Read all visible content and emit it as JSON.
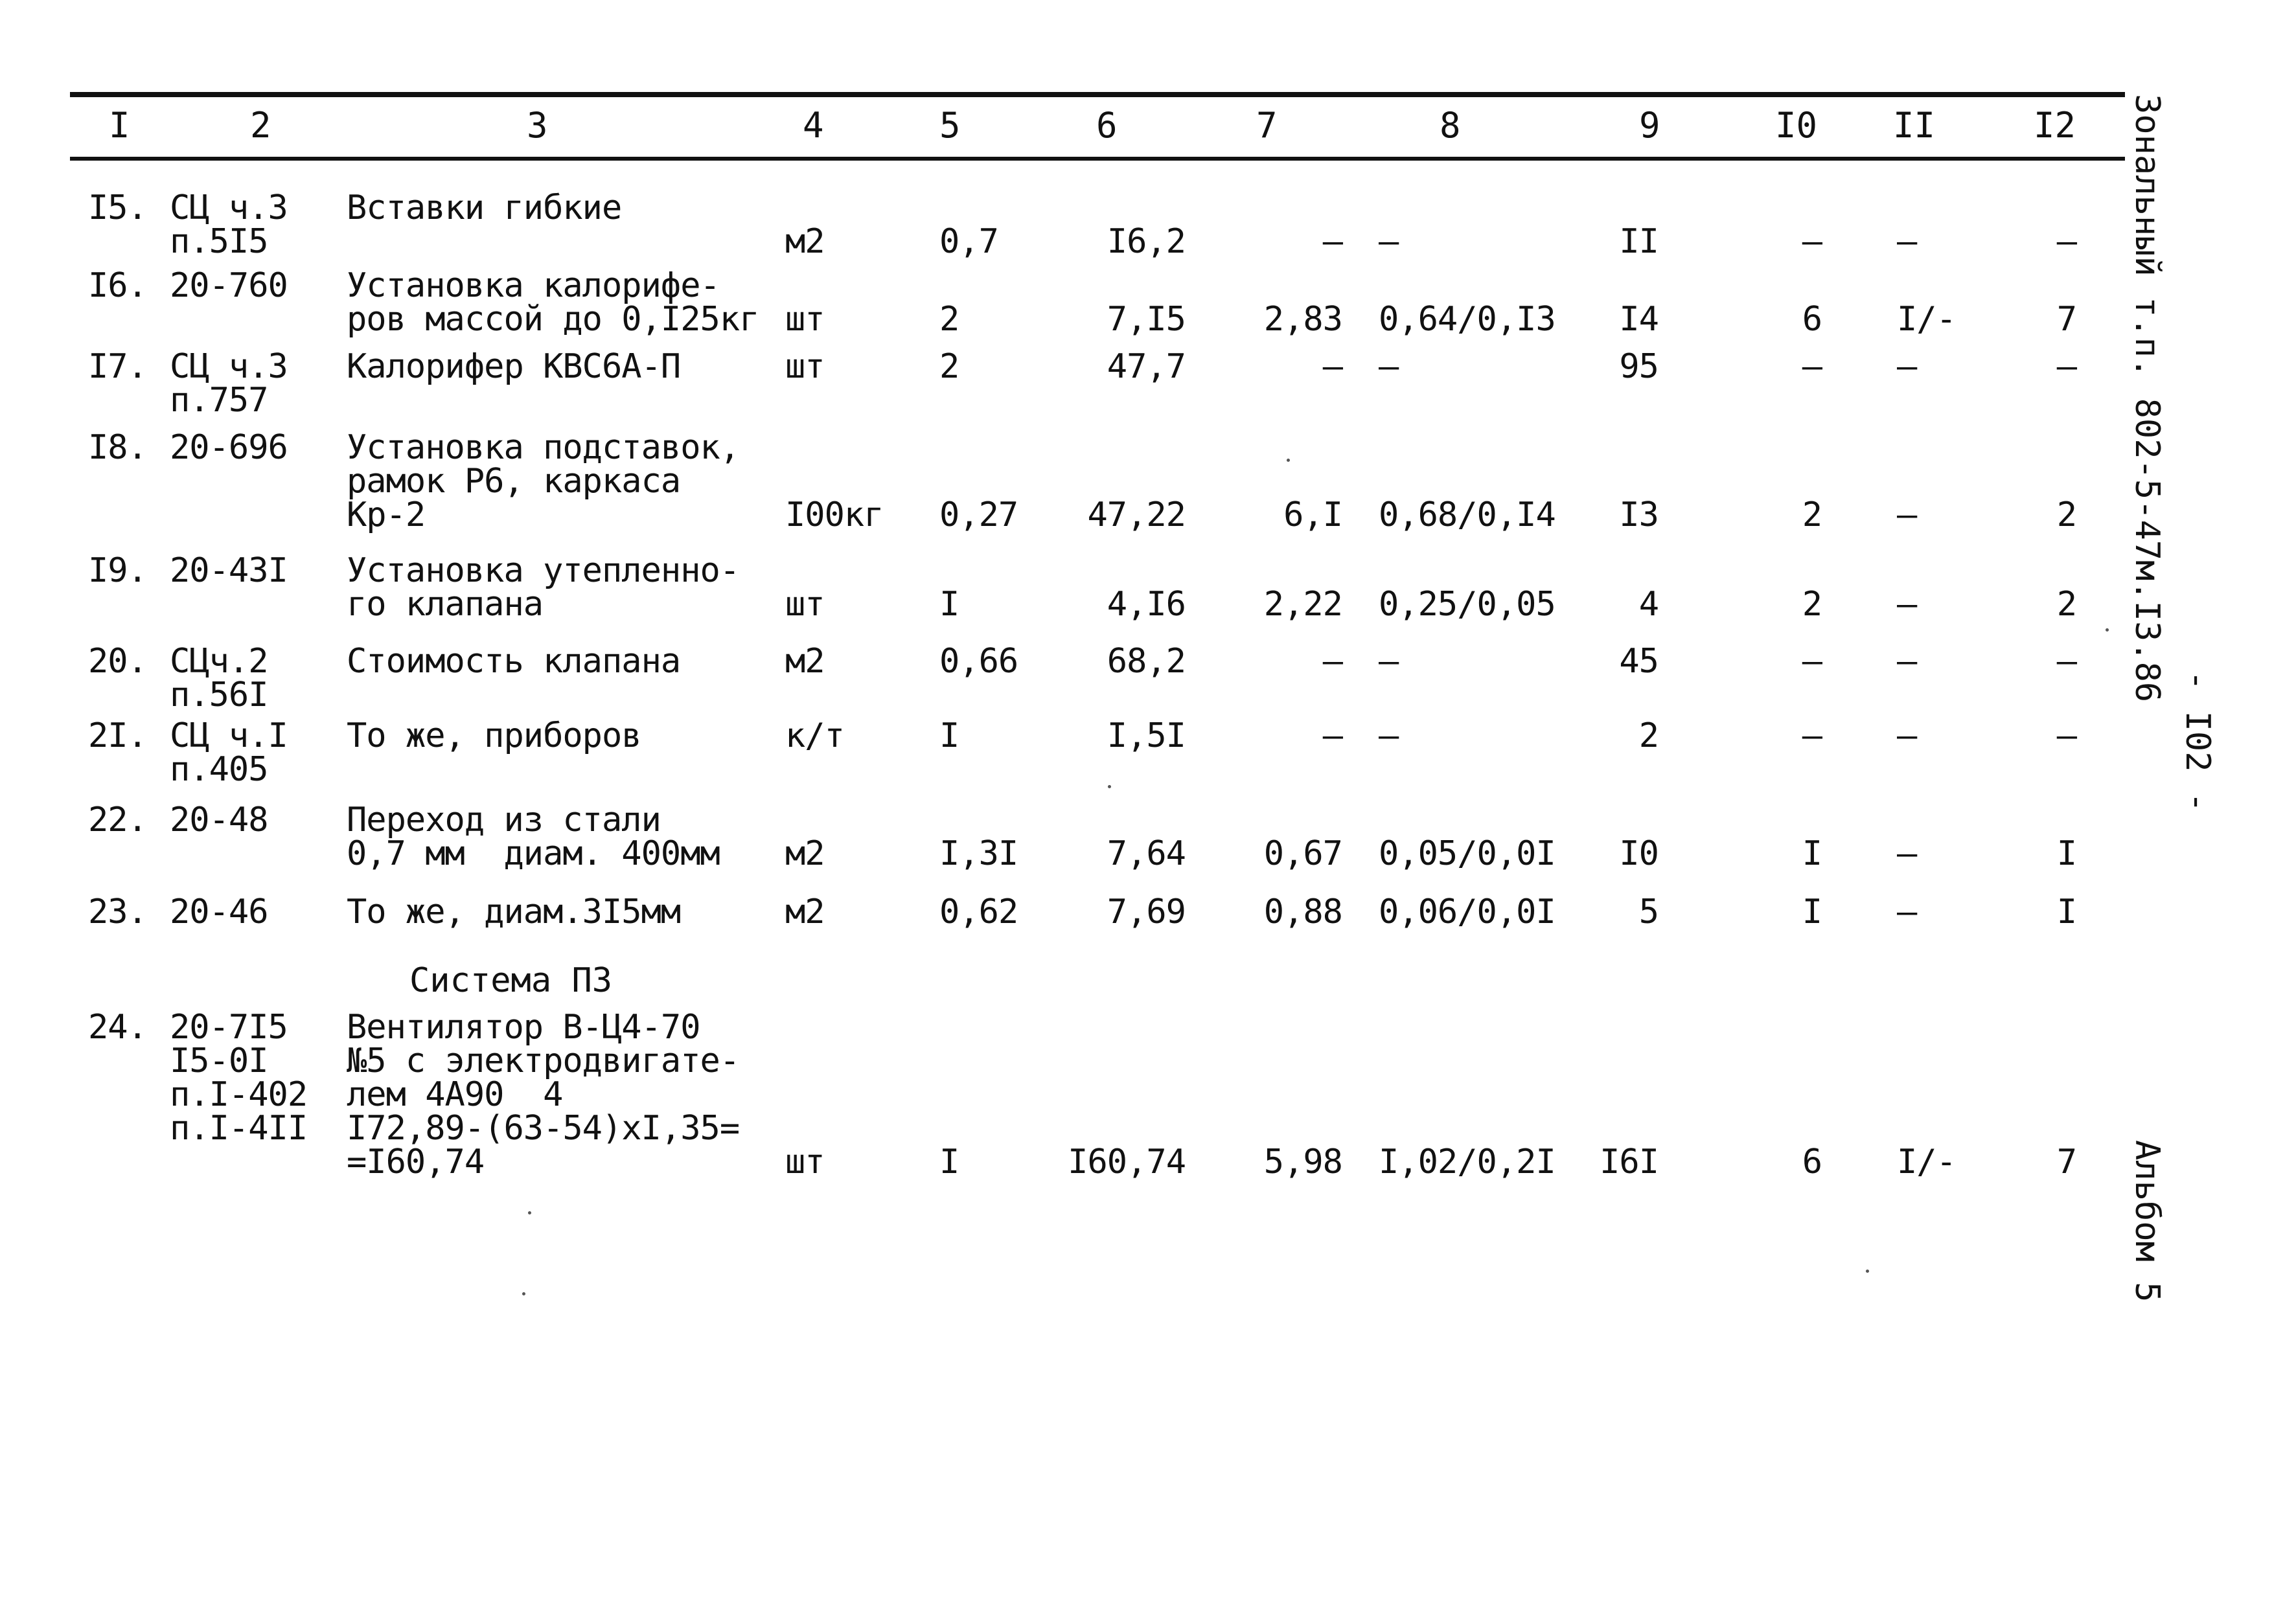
{
  "header": [
    "I",
    "2",
    "3",
    "4",
    "5",
    "6",
    "7",
    "8",
    "9",
    "I0",
    "II",
    "I2"
  ],
  "rows": [
    {
      "num": "I5.",
      "code": "СЦ ч.3\nп.5I5",
      "name": "Вставки гибкие",
      "unit": "м2",
      "c5": "0,7",
      "c6": "I6,2",
      "c7": "–",
      "c8": "–",
      "c9": "II",
      "c10": "–",
      "c11": "–",
      "c12": "–"
    },
    {
      "num": "I6.",
      "code": "20-760",
      "name": "Установка калорифе-\nров массой до 0,I25кг",
      "unit": "шт",
      "c5": "2",
      "c6": "7,I5",
      "c7": "2,83",
      "c8": "0,64/0,I3",
      "c9": "I4",
      "c10": "6",
      "c11": "I/-",
      "c12": "7"
    },
    {
      "num": "I7.",
      "code": "СЦ ч.3\nп.757",
      "name": "Калорифер КВС6А-П",
      "unit": "шт",
      "c5": "2",
      "c6": "47,7",
      "c7": "–",
      "c8": "–",
      "c9": "95",
      "c10": "–",
      "c11": "–",
      "c12": "–"
    },
    {
      "num": "I8.",
      "code": "20-696",
      "name": "Установка подставок,\nрамок Р6, каркаса\nКр-2",
      "unit": "I00кг",
      "c5": "0,27",
      "c6": "47,22",
      "c7": "6,I",
      "c8": "0,68/0,I4",
      "c9": "I3",
      "c10": "2",
      "c11": "–",
      "c12": "2"
    },
    {
      "num": "I9.",
      "code": "20-43I",
      "name": "Установка утепленно-\nго клапана",
      "unit": "шт",
      "c5": "I",
      "c6": "4,I6",
      "c7": "2,22",
      "c8": "0,25/0,05",
      "c9": "4",
      "c10": "2",
      "c11": "–",
      "c12": "2"
    },
    {
      "num": "20.",
      "code": "СЦч.2\nп.56I",
      "name": "Стоимость клапана",
      "unit": "м2",
      "c5": "0,66",
      "c6": "68,2",
      "c7": "–",
      "c8": "–",
      "c9": "45",
      "c10": "–",
      "c11": "–",
      "c12": "–"
    },
    {
      "num": "2I.",
      "code": "СЦ ч.I\nп.405",
      "name": "То же, приборов",
      "unit": "к/т",
      "c5": "I",
      "c6": "I,5I",
      "c7": "–",
      "c8": "–",
      "c9": "2",
      "c10": "–",
      "c11": "–",
      "c12": "–"
    },
    {
      "num": "22.",
      "code": "20-48",
      "name": "Переход из стали\n0,7 мм  диам. 400мм",
      "unit": "м2",
      "c5": "I,3I",
      "c6": "7,64",
      "c7": "0,67",
      "c8": "0,05/0,0I",
      "c9": "I0",
      "c10": "I",
      "c11": "–",
      "c12": "I"
    },
    {
      "num": "23.",
      "code": "20-46",
      "name": "То же, диам.3I5мм",
      "unit": "м2",
      "c5": "0,62",
      "c6": "7,69",
      "c7": "0,88",
      "c8": "0,06/0,0I",
      "c9": "5",
      "c10": "I",
      "c11": "–",
      "c12": "I"
    },
    {
      "num": "24.",
      "code": "20-7I5\nI5-0I\nп.I-402\nп.I-4II",
      "name": "Вентилятор В-Ц4-70\n№5 с электродвигате-\nлем 4А90  4\nI72,89-(63-54)xI,35=\n=I60,74",
      "unit": "шт",
      "c5": "I",
      "c6": "I60,74",
      "c7": "5,98",
      "c8": "I,02/0,2I",
      "c9": "I6I",
      "c10": "6",
      "c11": "I/-",
      "c12": "7"
    }
  ],
  "section_title": "Система П3",
  "side": {
    "reference": "Зональный т.п. 802-5-47м.I3.86",
    "page": "- I02 -",
    "album": "Альбом 5"
  }
}
